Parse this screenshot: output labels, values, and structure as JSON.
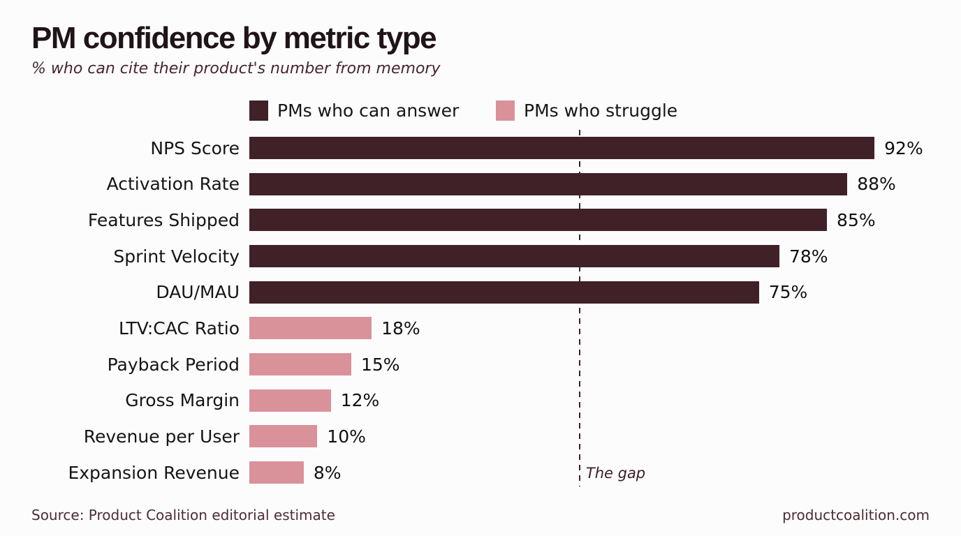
{
  "title": "PM confidence by metric type",
  "subtitle": "% who can cite their product's number from memory",
  "legend": {
    "items": [
      {
        "label": "PMs who can answer",
        "series": "answer",
        "color": "#3f2127"
      },
      {
        "label": "PMs who struggle",
        "series": "struggle",
        "color": "#d9929a"
      }
    ]
  },
  "chart_data": {
    "type": "bar",
    "orientation": "horizontal",
    "title": "PM confidence by metric type",
    "subtitle": "% who can cite their product's number from memory",
    "categories": [
      "NPS Score",
      "Activation Rate",
      "Features Shipped",
      "Sprint Velocity",
      "DAU/MAU",
      "LTV:CAC Ratio",
      "Payback Period",
      "Gross Margin",
      "Revenue per User",
      "Expansion Revenue"
    ],
    "values": [
      92,
      88,
      85,
      78,
      75,
      18,
      15,
      12,
      10,
      8
    ],
    "value_labels": [
      "92%",
      "88%",
      "85%",
      "78%",
      "75%",
      "18%",
      "15%",
      "12%",
      "10%",
      "8%"
    ],
    "series_membership": [
      "answer",
      "answer",
      "answer",
      "answer",
      "answer",
      "struggle",
      "struggle",
      "struggle",
      "struggle",
      "struggle"
    ],
    "colors": {
      "answer": "#3f2127",
      "struggle": "#d9929a"
    },
    "xlim": [
      0,
      100
    ],
    "grid": false,
    "legend_position": "top",
    "annotation": {
      "label": "The gap",
      "x": 48.6
    }
  },
  "footer": {
    "source": "Source: Product Coalition editorial estimate",
    "site": "productcoalition.com"
  }
}
